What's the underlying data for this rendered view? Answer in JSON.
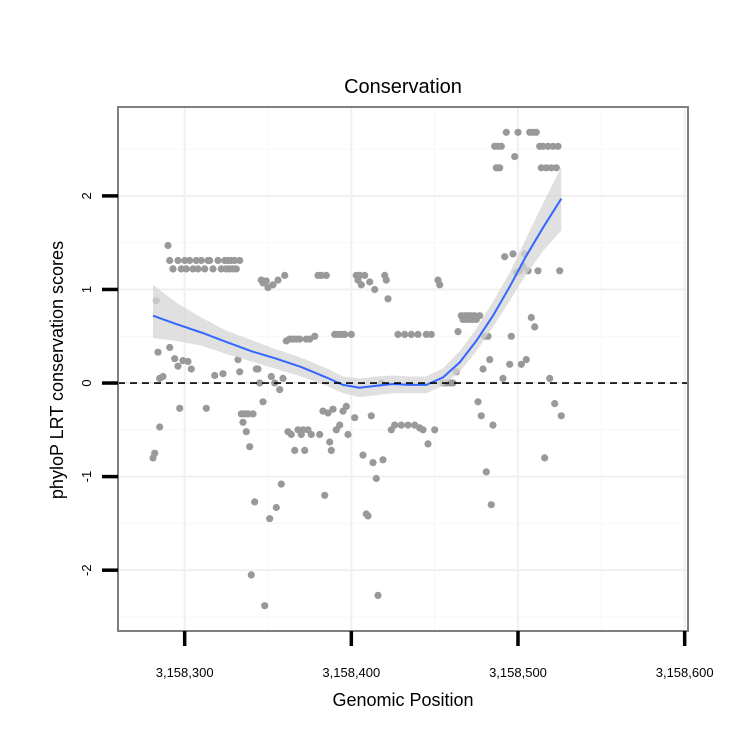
{
  "chart_data": {
    "type": "scatter",
    "title": "Conservation",
    "xlabel": "Genomic Position",
    "ylabel": "phyloP LRT conservation scores",
    "xlim": [
      3158260,
      3158602
    ],
    "ylim": [
      -2.65,
      2.95
    ],
    "x_ticks": [
      3158300,
      3158400,
      3158500,
      3158600
    ],
    "x_tick_labels": [
      "3,158,300",
      "3,158,400",
      "3,158,500",
      "3,158,600"
    ],
    "y_ticks": [
      -2,
      -1,
      0,
      1,
      2
    ],
    "y_tick_labels": [
      "-2",
      "-1",
      "0",
      "1",
      "2"
    ],
    "grid": true,
    "reference_line": {
      "y": 0,
      "style": "dashed",
      "color": "#000000"
    },
    "colors": {
      "points": "#999999",
      "smooth_line": "#3366ff",
      "confidence_band": "#d6d6d6",
      "panel_border": "#7f7f7f",
      "grid_major": "#f0f0f0",
      "grid_minor": "#f7f7f7"
    },
    "series": [
      {
        "points": [
          [
            3158281,
            -0.8
          ],
          [
            3158282,
            -0.75
          ],
          [
            3158283,
            0.88
          ],
          [
            3158284,
            0.33
          ],
          [
            3158285,
            -0.47
          ],
          [
            3158285,
            0.05
          ],
          [
            3158287,
            0.07
          ],
          [
            3158290,
            1.47
          ],
          [
            3158291,
            1.31
          ],
          [
            3158291,
            0.38
          ],
          [
            3158293,
            1.22
          ],
          [
            3158293,
            1.22
          ],
          [
            3158294,
            0.26
          ],
          [
            3158296,
            1.31
          ],
          [
            3158296,
            0.18
          ],
          [
            3158297,
            -0.27
          ],
          [
            3158298,
            1.22
          ],
          [
            3158299,
            0.24
          ],
          [
            3158300,
            1.31
          ],
          [
            3158301,
            1.22
          ],
          [
            3158302,
            0.23
          ],
          [
            3158303,
            1.31
          ],
          [
            3158304,
            0.15
          ],
          [
            3158305,
            1.22
          ],
          [
            3158307,
            1.31
          ],
          [
            3158308,
            1.22
          ],
          [
            3158310,
            1.31
          ],
          [
            3158312,
            1.22
          ],
          [
            3158313,
            -0.27
          ],
          [
            3158314,
            1.31
          ],
          [
            3158315,
            1.31
          ],
          [
            3158317,
            1.22
          ],
          [
            3158318,
            0.08
          ],
          [
            3158320,
            1.31
          ],
          [
            3158322,
            1.22
          ],
          [
            3158323,
            0.1
          ],
          [
            3158324,
            1.31
          ],
          [
            3158325,
            1.22
          ],
          [
            3158326,
            1.31
          ],
          [
            3158327,
            1.22
          ],
          [
            3158328,
            1.31
          ],
          [
            3158329,
            1.22
          ],
          [
            3158330,
            1.31
          ],
          [
            3158331,
            1.22
          ],
          [
            3158332,
            0.25
          ],
          [
            3158333,
            1.31
          ],
          [
            3158333,
            0.12
          ],
          [
            3158334,
            -0.33
          ],
          [
            3158335,
            -0.42
          ],
          [
            3158336,
            -0.33
          ],
          [
            3158337,
            -0.52
          ],
          [
            3158338,
            -0.33
          ],
          [
            3158339,
            -0.68
          ],
          [
            3158340,
            -2.05
          ],
          [
            3158341,
            -0.33
          ],
          [
            3158342,
            -1.27
          ],
          [
            3158343,
            0.15
          ],
          [
            3158344,
            0.15
          ],
          [
            3158345,
            0.0
          ],
          [
            3158346,
            1.1
          ],
          [
            3158347,
            1.07
          ],
          [
            3158347,
            -0.2
          ],
          [
            3158348,
            -2.38
          ],
          [
            3158349,
            1.09
          ],
          [
            3158350,
            1.02
          ],
          [
            3158351,
            -1.45
          ],
          [
            3158352,
            0.07
          ],
          [
            3158353,
            1.05
          ],
          [
            3158354,
            0.0
          ],
          [
            3158355,
            -1.33
          ],
          [
            3158356,
            1.1
          ],
          [
            3158357,
            -0.07
          ],
          [
            3158358,
            -1.08
          ],
          [
            3158359,
            0.05
          ],
          [
            3158360,
            1.15
          ],
          [
            3158361,
            0.45
          ],
          [
            3158362,
            -0.52
          ],
          [
            3158363,
            0.47
          ],
          [
            3158364,
            -0.55
          ],
          [
            3158365,
            0.47
          ],
          [
            3158366,
            -0.72
          ],
          [
            3158367,
            0.47
          ],
          [
            3158368,
            -0.5
          ],
          [
            3158369,
            0.47
          ],
          [
            3158370,
            -0.55
          ],
          [
            3158371,
            -0.5
          ],
          [
            3158372,
            -0.72
          ],
          [
            3158373,
            0.47
          ],
          [
            3158374,
            -0.5
          ],
          [
            3158375,
            0.47
          ],
          [
            3158376,
            -0.55
          ],
          [
            3158378,
            0.5
          ],
          [
            3158380,
            1.15
          ],
          [
            3158381,
            -0.55
          ],
          [
            3158382,
            1.15
          ],
          [
            3158383,
            -0.3
          ],
          [
            3158384,
            -1.2
          ],
          [
            3158385,
            1.15
          ],
          [
            3158386,
            -0.32
          ],
          [
            3158387,
            -0.63
          ],
          [
            3158388,
            -0.72
          ],
          [
            3158389,
            -0.28
          ],
          [
            3158390,
            0.52
          ],
          [
            3158391,
            -0.5
          ],
          [
            3158392,
            0.52
          ],
          [
            3158393,
            -0.45
          ],
          [
            3158394,
            0.52
          ],
          [
            3158395,
            -0.3
          ],
          [
            3158396,
            0.52
          ],
          [
            3158397,
            -0.25
          ],
          [
            3158398,
            -0.55
          ],
          [
            3158400,
            0.52
          ],
          [
            3158402,
            -0.37
          ],
          [
            3158403,
            1.15
          ],
          [
            3158404,
            1.1
          ],
          [
            3158405,
            1.15
          ],
          [
            3158406,
            1.05
          ],
          [
            3158407,
            -0.77
          ],
          [
            3158408,
            1.15
          ],
          [
            3158409,
            -1.4
          ],
          [
            3158410,
            -1.42
          ],
          [
            3158411,
            1.08
          ],
          [
            3158412,
            -0.35
          ],
          [
            3158413,
            -0.85
          ],
          [
            3158414,
            1.0
          ],
          [
            3158415,
            -1.02
          ],
          [
            3158416,
            -2.27
          ],
          [
            3158418,
            0.0
          ],
          [
            3158419,
            -0.82
          ],
          [
            3158420,
            1.15
          ],
          [
            3158421,
            1.1
          ],
          [
            3158422,
            0.9
          ],
          [
            3158424,
            -0.5
          ],
          [
            3158426,
            -0.45
          ],
          [
            3158428,
            0.52
          ],
          [
            3158430,
            -0.45
          ],
          [
            3158432,
            0.52
          ],
          [
            3158434,
            -0.45
          ],
          [
            3158436,
            0.52
          ],
          [
            3158438,
            -0.45
          ],
          [
            3158440,
            0.52
          ],
          [
            3158441,
            -0.48
          ],
          [
            3158443,
            -0.5
          ],
          [
            3158445,
            0.52
          ],
          [
            3158446,
            -0.65
          ],
          [
            3158448,
            0.52
          ],
          [
            3158450,
            -0.5
          ],
          [
            3158452,
            1.1
          ],
          [
            3158453,
            1.05
          ],
          [
            3158455,
            0.0
          ],
          [
            3158457,
            0.0
          ],
          [
            3158459,
            0.0
          ],
          [
            3158461,
            0.0
          ],
          [
            3158463,
            0.12
          ],
          [
            3158464,
            0.55
          ],
          [
            3158466,
            0.72
          ],
          [
            3158467,
            0.68
          ],
          [
            3158468,
            0.72
          ],
          [
            3158469,
            0.68
          ],
          [
            3158470,
            0.72
          ],
          [
            3158471,
            0.68
          ],
          [
            3158472,
            0.72
          ],
          [
            3158473,
            0.68
          ],
          [
            3158474,
            0.72
          ],
          [
            3158475,
            0.68
          ],
          [
            3158476,
            -0.2
          ],
          [
            3158477,
            0.72
          ],
          [
            3158478,
            -0.35
          ],
          [
            3158479,
            0.15
          ],
          [
            3158480,
            0.5
          ],
          [
            3158481,
            -0.95
          ],
          [
            3158482,
            0.5
          ],
          [
            3158483,
            0.25
          ],
          [
            3158484,
            -1.3
          ],
          [
            3158485,
            -0.45
          ],
          [
            3158486,
            2.53
          ],
          [
            3158487,
            2.3
          ],
          [
            3158488,
            2.53
          ],
          [
            3158489,
            2.3
          ],
          [
            3158490,
            2.53
          ],
          [
            3158491,
            0.05
          ],
          [
            3158492,
            1.35
          ],
          [
            3158493,
            2.68
          ],
          [
            3158495,
            0.2
          ],
          [
            3158496,
            0.5
          ],
          [
            3158497,
            1.38
          ],
          [
            3158498,
            2.42
          ],
          [
            3158499,
            1.18
          ],
          [
            3158500,
            2.68
          ],
          [
            3158501,
            1.2
          ],
          [
            3158502,
            0.2
          ],
          [
            3158503,
            1.25
          ],
          [
            3158504,
            1.38
          ],
          [
            3158505,
            0.25
          ],
          [
            3158506,
            1.2
          ],
          [
            3158507,
            2.68
          ],
          [
            3158508,
            0.7
          ],
          [
            3158509,
            2.68
          ],
          [
            3158510,
            0.6
          ],
          [
            3158511,
            2.68
          ],
          [
            3158512,
            1.2
          ],
          [
            3158513,
            2.53
          ],
          [
            3158514,
            2.3
          ],
          [
            3158515,
            2.53
          ],
          [
            3158516,
            -0.8
          ],
          [
            3158517,
            2.3
          ],
          [
            3158518,
            2.53
          ],
          [
            3158519,
            0.05
          ],
          [
            3158520,
            2.3
          ],
          [
            3158521,
            2.53
          ],
          [
            3158522,
            -0.22
          ],
          [
            3158523,
            2.3
          ],
          [
            3158524,
            2.53
          ],
          [
            3158525,
            1.2
          ],
          [
            3158526,
            -0.35
          ]
        ]
      }
    ],
    "smooth": {
      "x": [
        3158281,
        3158295,
        3158310,
        3158325,
        3158340,
        3158355,
        3158370,
        3158385,
        3158395,
        3158405,
        3158415,
        3158425,
        3158435,
        3158445,
        3158455,
        3158465,
        3158475,
        3158485,
        3158495,
        3158505,
        3158515,
        3158526
      ],
      "y": [
        0.72,
        0.63,
        0.54,
        0.44,
        0.34,
        0.26,
        0.17,
        0.06,
        -0.02,
        -0.05,
        -0.03,
        -0.01,
        -0.02,
        -0.02,
        0.06,
        0.22,
        0.45,
        0.72,
        1.03,
        1.36,
        1.66,
        1.97
      ],
      "lower": [
        0.48,
        0.45,
        0.4,
        0.31,
        0.23,
        0.15,
        0.07,
        -0.03,
        -0.11,
        -0.15,
        -0.13,
        -0.11,
        -0.11,
        -0.11,
        -0.03,
        0.12,
        0.34,
        0.6,
        0.88,
        1.16,
        1.41,
        1.63
      ],
      "upper": [
        1.05,
        0.86,
        0.7,
        0.56,
        0.46,
        0.36,
        0.27,
        0.16,
        0.07,
        0.05,
        0.07,
        0.08,
        0.07,
        0.07,
        0.16,
        0.34,
        0.58,
        0.87,
        1.18,
        1.55,
        1.92,
        2.31
      ]
    }
  }
}
